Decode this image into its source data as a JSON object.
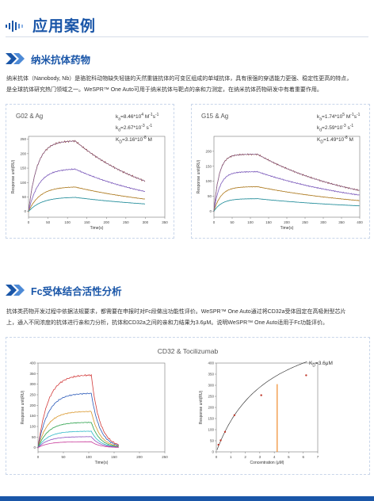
{
  "header": {
    "title": "应用案例"
  },
  "section1": {
    "title": "纳米抗体药物",
    "body_lines": [
      "纳米抗体（Nanobody, Nb）是骆驼科动物缺失轻链的天然重链抗体的可变区组成的单域抗体，具有很强的穿透能力更强、稳定性更高的特点，",
      "是全球抗体研究热门领域之一。WeSPR™ One Auto可用于纳米抗体与靶点的亲和力测定，在纳米抗体药物研发中有着重要作用。"
    ]
  },
  "section2": {
    "title": "Fc受体结合活性分析",
    "body_lines": [
      "抗体类药物开发过程中依据法规要求，都需要在申报时对Fc段做出功能性评价。WeSPR™ One Auto通过将CD32a受体固定在高吸附型芯片",
      "上，通入不同浓度的抗体进行亲和力分析，抗体和CD32a之间的亲和力结果为3.6μM。说明WeSPR™ One Auto适用于Fc功能评价。"
    ]
  },
  "chart_data": [
    {
      "type": "line",
      "panel_title": "G02 & Ag",
      "constants": {
        "ka": "kₐ=8.46*10⁴ M⁻¹s⁻¹",
        "kd": "kₑ=2.67*10⁻³ s⁻¹",
        "KD": "Kᴅ=3.16*10⁻⁸ M"
      },
      "constant_parts": [
        {
          "sym": "k",
          "sub": "a",
          "val": "=8.46*10",
          "exp": "4",
          "unit": " M",
          "unit_exp": "-1",
          "tail": "s",
          "tail_exp": "-1"
        },
        {
          "sym": "k",
          "sub": "d",
          "val": "=2.67*10",
          "exp": "-3",
          "unit": " s",
          "unit_exp": "-1",
          "tail": "",
          "tail_exp": ""
        },
        {
          "sym": "K",
          "sub": "D",
          "val": "=3.16*10",
          "exp": "-8",
          "unit": " M",
          "unit_exp": "",
          "tail": "",
          "tail_exp": ""
        }
      ],
      "xlabel": "Time(s)",
      "ylabel": "Response unit(RU)",
      "xlim": [
        0,
        350
      ],
      "ylim": [
        -20,
        260
      ],
      "xticks": [
        0,
        50,
        100,
        150,
        200,
        250,
        300,
        350
      ],
      "yticks": [
        0,
        50,
        100,
        150,
        200,
        250
      ],
      "assoc_end": 120,
      "t_end": 300,
      "series": [
        {
          "plateau": 245,
          "final": 100,
          "k": 0.045,
          "kd": 0.0047,
          "color": "#8b3a2a",
          "fit": "#7a6fcf"
        },
        {
          "plateau": 148,
          "final": 80,
          "k": 0.038,
          "kd": 0.0042,
          "color": "#6a3fa6",
          "fit": "#9b8bdc"
        },
        {
          "plateau": 86,
          "final": 58,
          "k": 0.034,
          "kd": 0.0038,
          "color": "#c98a1f",
          "fit": "#8f6c2a"
        },
        {
          "plateau": 50,
          "final": 32,
          "k": 0.03,
          "kd": 0.0035,
          "color": "#1d9aa8",
          "fit": "#2a7f8c"
        }
      ]
    },
    {
      "type": "line",
      "panel_title": "G15 & Ag",
      "constant_parts": [
        {
          "sym": "k",
          "sub": "a",
          "val": "=1.74*10",
          "exp": "5",
          "unit": " M",
          "unit_exp": "-1",
          "tail": "s",
          "tail_exp": "-1"
        },
        {
          "sym": "k",
          "sub": "d",
          "val": "=2.59*10",
          "exp": "-3",
          "unit": " s",
          "unit_exp": "-1",
          "tail": "",
          "tail_exp": ""
        },
        {
          "sym": "K",
          "sub": "D",
          "val": "=1.49*10",
          "exp": "-8",
          "unit": " M",
          "unit_exp": "",
          "tail": "",
          "tail_exp": ""
        }
      ],
      "xlabel": "Time(s)",
      "ylabel": "Response unit(RU)",
      "xlim": [
        0,
        400
      ],
      "ylim": [
        -20,
        250
      ],
      "xticks": [
        0,
        50,
        100,
        150,
        200,
        250,
        300,
        350,
        400
      ],
      "yticks": [
        0,
        50,
        100,
        150,
        200
      ],
      "assoc_end": 120,
      "t_end": 400,
      "series": [
        {
          "plateau": 190,
          "final": 85,
          "k": 0.07,
          "kd": 0.0036,
          "color": "#8b3a2a",
          "fit": "#7a6fcf"
        },
        {
          "plateau": 132,
          "final": 68,
          "k": 0.06,
          "kd": 0.0032,
          "color": "#6a3fa6",
          "fit": "#9b8bdc"
        },
        {
          "plateau": 82,
          "final": 45,
          "k": 0.05,
          "kd": 0.003,
          "color": "#c98a1f",
          "fit": "#8f6c2a"
        },
        {
          "plateau": 42,
          "final": 22,
          "k": 0.045,
          "kd": 0.003,
          "color": "#1d9aa8",
          "fit": "#2a7f8c"
        }
      ]
    },
    {
      "type": "line",
      "panel_title": "CD32 & Tocilizumab",
      "xlabel": "Time(s)",
      "ylabel": "Response unit(RU)",
      "xlim": [
        0,
        250
      ],
      "ylim": [
        -20,
        400
      ],
      "xticks": [
        0,
        50,
        100,
        150,
        200,
        250
      ],
      "yticks": [
        0,
        50,
        100,
        150,
        200,
        250,
        300,
        350,
        400
      ],
      "assoc_end": 105,
      "t_end": 160,
      "series": [
        {
          "plateau": 345,
          "final": 5,
          "k": 0.05,
          "kd": 0.06,
          "color": "#d23a3a",
          "fit": "#d23a3a"
        },
        {
          "plateau": 258,
          "final": 5,
          "k": 0.05,
          "kd": 0.06,
          "color": "#2a59b8",
          "fit": "#2a59b8"
        },
        {
          "plateau": 172,
          "final": 4,
          "k": 0.05,
          "kd": 0.06,
          "color": "#d9962a",
          "fit": "#d9962a"
        },
        {
          "plateau": 120,
          "final": 3,
          "k": 0.05,
          "kd": 0.06,
          "color": "#2aa04a",
          "fit": "#2aa04a"
        },
        {
          "plateau": 78,
          "final": 2,
          "k": 0.05,
          "kd": 0.06,
          "color": "#2fb8c8",
          "fit": "#2fb8c8"
        },
        {
          "plateau": 52,
          "final": 2,
          "k": 0.05,
          "kd": 0.06,
          "color": "#8a4fc0",
          "fit": "#8a4fc0"
        },
        {
          "plateau": 28,
          "final": 1,
          "k": 0.05,
          "kd": 0.06,
          "color": "#c83a9a",
          "fit": "#c83a9a"
        }
      ]
    },
    {
      "type": "scatter",
      "constant_parts": [
        {
          "sym": "K",
          "sub": "D",
          "val": "=3.6μM",
          "exp": "",
          "unit": "",
          "unit_exp": "",
          "tail": "",
          "tail_exp": ""
        }
      ],
      "xlabel": "Concentration (μM)",
      "ylabel": "Response unit(RU)",
      "xlim": [
        0,
        7
      ],
      "ylim": [
        0,
        400
      ],
      "xticks": [
        0,
        1,
        2,
        3,
        4,
        5,
        6,
        7
      ],
      "yticks": [
        0,
        50,
        100,
        150,
        200,
        250,
        300,
        350,
        400
      ],
      "Rmax": 640,
      "KD": 3.6,
      "points": [
        {
          "x": 0.15,
          "y": 32
        },
        {
          "x": 0.3,
          "y": 52
        },
        {
          "x": 0.6,
          "y": 90
        },
        {
          "x": 1.25,
          "y": 165
        },
        {
          "x": 3.1,
          "y": 255
        },
        {
          "x": 6.2,
          "y": 345
        }
      ],
      "kd_line_x": 4.2,
      "accent": "#f08a2a"
    }
  ]
}
